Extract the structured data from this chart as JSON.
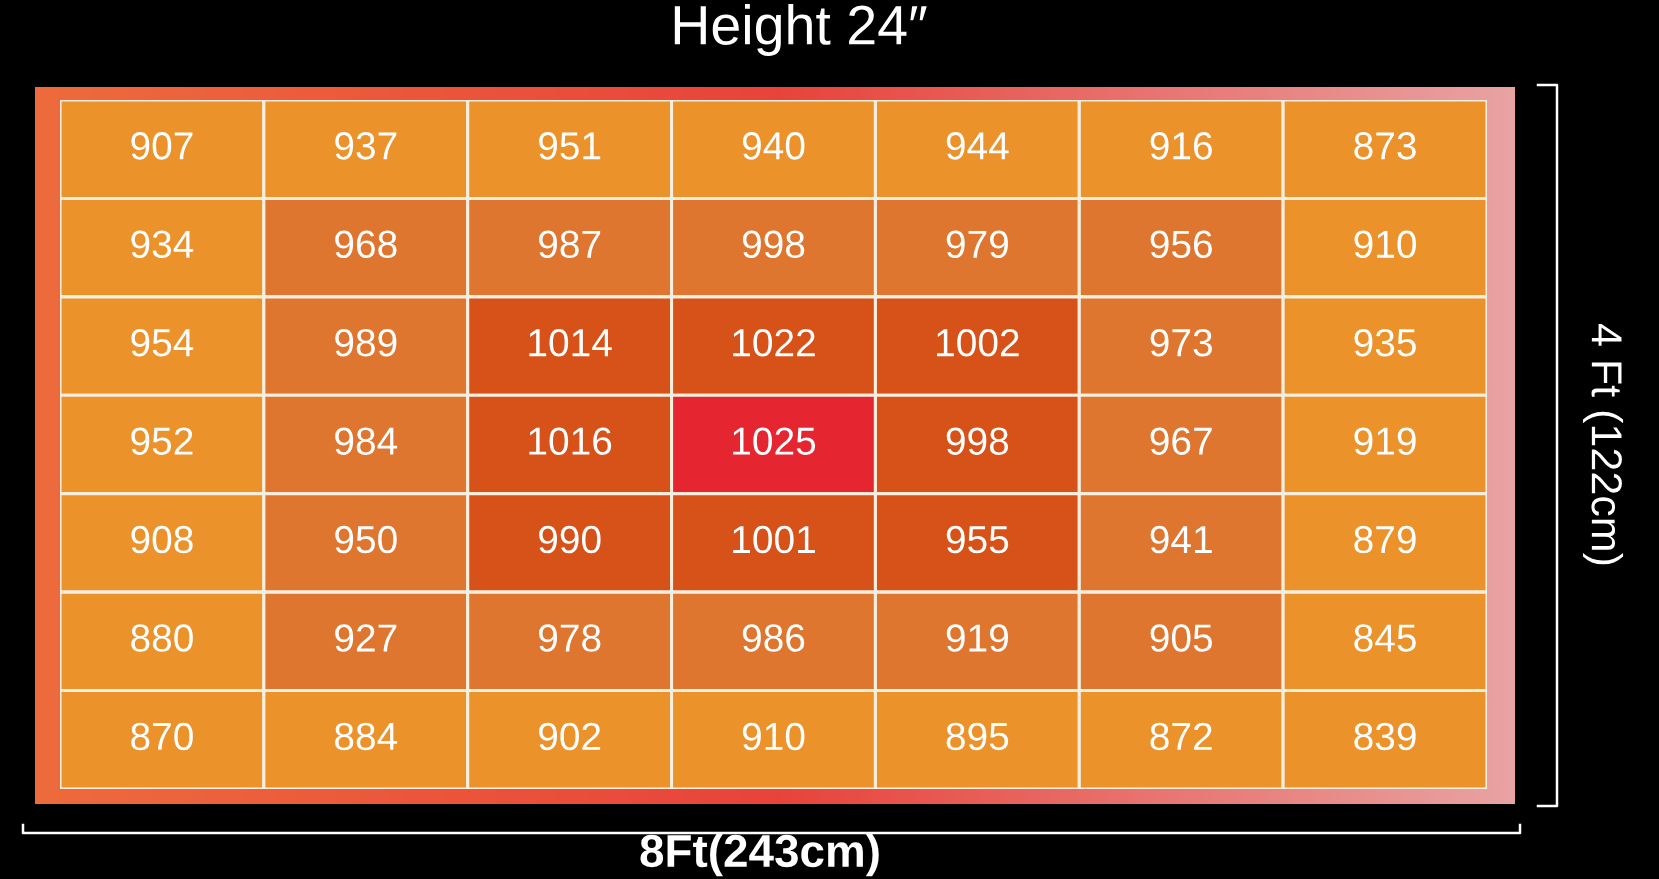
{
  "chart_data": {
    "type": "heatmap",
    "title": "Height 24″",
    "xlabel": "8Ft(243cm)",
    "ylabel": "4 Ft (122cm)",
    "categories": [
      null,
      null,
      null,
      null,
      null,
      null,
      null
    ],
    "y_categories": [
      null,
      null,
      null,
      null,
      null,
      null,
      null
    ],
    "cells": [
      [
        907,
        937,
        951,
        940,
        944,
        916,
        873
      ],
      [
        934,
        968,
        987,
        998,
        979,
        956,
        910
      ],
      [
        954,
        989,
        1014,
        1022,
        1002,
        973,
        935
      ],
      [
        952,
        984,
        1016,
        1025,
        998,
        967,
        919
      ],
      [
        908,
        950,
        990,
        1001,
        955,
        941,
        879
      ],
      [
        880,
        927,
        978,
        986,
        919,
        905,
        845
      ],
      [
        870,
        884,
        902,
        910,
        895,
        872,
        839
      ]
    ],
    "colors": [
      [
        "#eb922b",
        "#eb922b",
        "#eb922b",
        "#eb922b",
        "#eb922b",
        "#eb922b",
        "#eb922b"
      ],
      [
        "#eb922b",
        "#df7630",
        "#df7630",
        "#df7630",
        "#df7630",
        "#df7630",
        "#eb922b"
      ],
      [
        "#eb922b",
        "#df7630",
        "#d75219",
        "#d75219",
        "#d75219",
        "#df7630",
        "#eb922b"
      ],
      [
        "#eb922b",
        "#df7630",
        "#d75219",
        "#e52630",
        "#d75219",
        "#df7630",
        "#eb922b"
      ],
      [
        "#eb922b",
        "#df7630",
        "#d75219",
        "#d75219",
        "#d75219",
        "#df7630",
        "#eb922b"
      ],
      [
        "#eb922b",
        "#df7630",
        "#df7630",
        "#df7630",
        "#df7630",
        "#df7630",
        "#eb922b"
      ],
      [
        "#eb922b",
        "#eb922b",
        "#eb922b",
        "#eb922b",
        "#eb922b",
        "#eb922b",
        "#eb922b"
      ]
    ],
    "data_labels": true
  }
}
